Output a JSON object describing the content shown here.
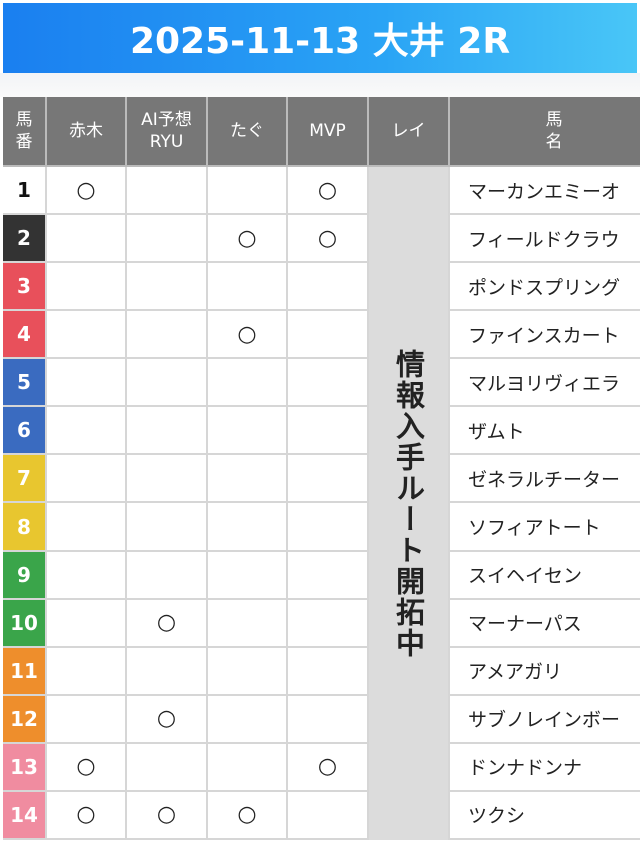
{
  "header": {
    "title": "2025-11-13 大井 2R"
  },
  "table": {
    "columns": [
      [
        "馬",
        "番"
      ],
      [
        "赤木"
      ],
      [
        "AI予想",
        "RYU"
      ],
      [
        "たぐ"
      ],
      [
        "MVP"
      ],
      [
        "レイ"
      ],
      [
        "馬",
        "名"
      ]
    ],
    "rei_note": "情報入手ルート開拓中",
    "rows": [
      {
        "number": "1",
        "marks": [
          "○",
          null,
          null,
          "○"
        ],
        "name": "マーカンエミーオ"
      },
      {
        "number": "2",
        "marks": [
          null,
          null,
          "○",
          "○"
        ],
        "name": "フィールドクラウ"
      },
      {
        "number": "3",
        "marks": [
          null,
          null,
          null,
          null
        ],
        "name": "ポンドスプリング"
      },
      {
        "number": "4",
        "marks": [
          null,
          null,
          "○",
          null
        ],
        "name": "ファインスカート"
      },
      {
        "number": "5",
        "marks": [
          null,
          null,
          null,
          null
        ],
        "name": "マルヨリヴィエラ"
      },
      {
        "number": "6",
        "marks": [
          null,
          null,
          null,
          null
        ],
        "name": "ザムト"
      },
      {
        "number": "7",
        "marks": [
          null,
          null,
          null,
          null
        ],
        "name": "ゼネラルチーター"
      },
      {
        "number": "8",
        "marks": [
          null,
          null,
          null,
          null
        ],
        "name": "ソフィアトート"
      },
      {
        "number": "9",
        "marks": [
          null,
          null,
          null,
          null
        ],
        "name": "スイヘイセン"
      },
      {
        "number": "10",
        "marks": [
          null,
          "○",
          null,
          null
        ],
        "name": "マーナーパス"
      },
      {
        "number": "11",
        "marks": [
          null,
          null,
          null,
          null
        ],
        "name": "アメアガリ"
      },
      {
        "number": "12",
        "marks": [
          null,
          "○",
          null,
          null
        ],
        "name": "サブノレインボー"
      },
      {
        "number": "13",
        "marks": [
          "○",
          null,
          null,
          "○"
        ],
        "name": "ドンナドンナ"
      },
      {
        "number": "14",
        "marks": [
          "○",
          "○",
          "○",
          null
        ],
        "name": "ツクシ"
      }
    ]
  }
}
